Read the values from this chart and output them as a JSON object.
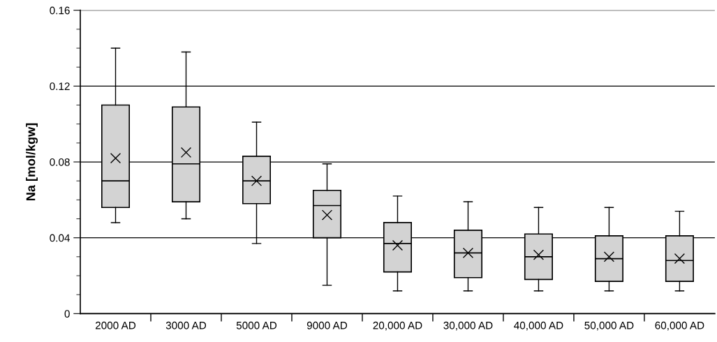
{
  "chart_data": {
    "type": "box",
    "ylabel": "Na [mol/kgw]",
    "categories": [
      "2000 AD",
      "3000 AD",
      "5000 AD",
      "9000 AD",
      "20,000 AD",
      "30,000 AD",
      "40,000 AD",
      "50,000 AD",
      "60,000 AD"
    ],
    "boxes": [
      {
        "low": 0.048,
        "q1": 0.056,
        "median": 0.07,
        "q3": 0.11,
        "high": 0.14,
        "mean": 0.082
      },
      {
        "low": 0.05,
        "q1": 0.059,
        "median": 0.079,
        "q3": 0.109,
        "high": 0.138,
        "mean": 0.085
      },
      {
        "low": 0.037,
        "q1": 0.058,
        "median": 0.07,
        "q3": 0.083,
        "high": 0.101,
        "mean": 0.07
      },
      {
        "low": 0.015,
        "q1": 0.04,
        "median": 0.057,
        "q3": 0.065,
        "high": 0.079,
        "mean": 0.052
      },
      {
        "low": 0.012,
        "q1": 0.022,
        "median": 0.037,
        "q3": 0.048,
        "high": 0.062,
        "mean": 0.036
      },
      {
        "low": 0.012,
        "q1": 0.019,
        "median": 0.032,
        "q3": 0.044,
        "high": 0.059,
        "mean": 0.032
      },
      {
        "low": 0.012,
        "q1": 0.018,
        "median": 0.03,
        "q3": 0.042,
        "high": 0.056,
        "mean": 0.031
      },
      {
        "low": 0.012,
        "q1": 0.017,
        "median": 0.029,
        "q3": 0.041,
        "high": 0.056,
        "mean": 0.03
      },
      {
        "low": 0.012,
        "q1": 0.017,
        "median": 0.028,
        "q3": 0.041,
        "high": 0.054,
        "mean": 0.029
      }
    ],
    "color": "#d3d3d3",
    "ylim": [
      0,
      0.16
    ],
    "yticks": [
      0,
      0.04,
      0.08,
      0.12,
      0.16
    ],
    "grid": "y",
    "marker": "cross"
  }
}
